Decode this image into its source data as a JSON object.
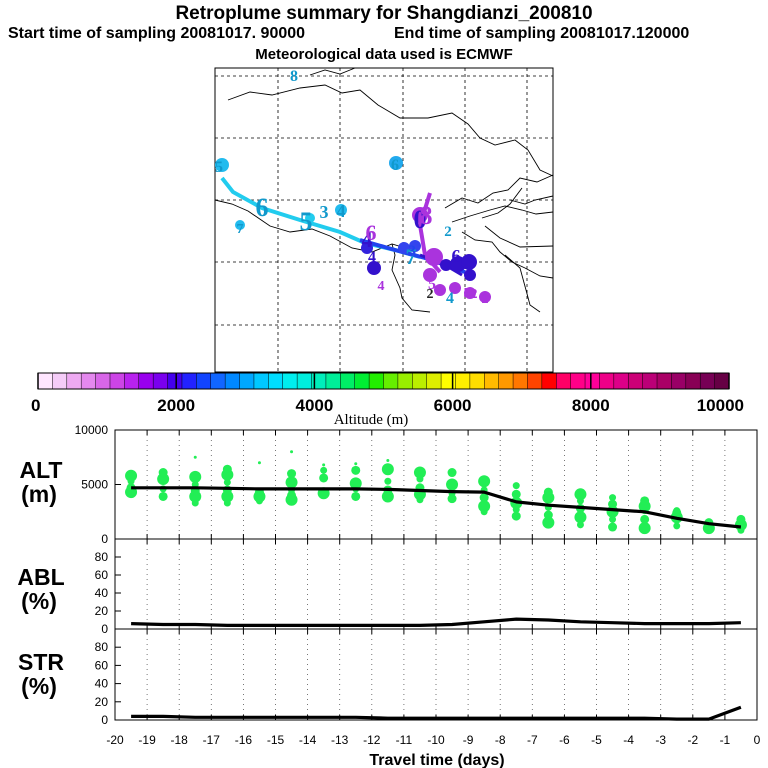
{
  "header": {
    "title": "Retroplume summary for Shangdianzi_200810",
    "start": "Start time of sampling 20081017. 90000",
    "end": "End time of sampling 20081017.120000",
    "met": "Meteorological data used is ECMWF"
  },
  "colorbar": {
    "label": "Altitude (m)",
    "tick_labels": [
      "0",
      "2000",
      "4000",
      "6000",
      "8000",
      "10000"
    ],
    "colors": [
      "#ffe6ff",
      "#f5ccf8",
      "#eeaaf2",
      "#e488ee",
      "#d866e8",
      "#cc44e6",
      "#b822ee",
      "#9900ee",
      "#7a00ee",
      "#4400ee",
      "#2222ff",
      "#1144ff",
      "#1166ff",
      "#0088ff",
      "#00a8ff",
      "#00c8ff",
      "#00ddff",
      "#00eeee",
      "#00eedd",
      "#00eebb",
      "#00ee99",
      "#00ee66",
      "#00ee33",
      "#22ee00",
      "#66ee00",
      "#99ee00",
      "#bbee00",
      "#ddee00",
      "#ffff00",
      "#ffee00",
      "#ffdd00",
      "#ffbb00",
      "#ff9900",
      "#ff7700",
      "#ff4400",
      "#ff0000",
      "#ff0066",
      "#ff0088",
      "#ff0099",
      "#ee0088",
      "#dd0088",
      "#cc0077",
      "#bb0077",
      "#aa0066",
      "#990066",
      "#880055",
      "#770055",
      "#660044"
    ]
  },
  "map": {
    "colors": {
      "line1": "#22ccee",
      "line2": "#2244ee",
      "line3": "#aa33dd",
      "line4": "#3311cc"
    },
    "labels": [
      {
        "text": "0",
        "color": "#3311cc"
      },
      {
        "text": "2",
        "color": "#1199cc"
      },
      {
        "text": "2",
        "color": "#222222"
      },
      {
        "text": "3",
        "color": "#1199cc"
      },
      {
        "text": "4",
        "color": "#1199cc"
      },
      {
        "text": "4",
        "color": "#3311cc"
      },
      {
        "text": "4",
        "color": "#3311cc"
      },
      {
        "text": "4",
        "color": "#aa33dd"
      },
      {
        "text": "4",
        "color": "#1199cc"
      },
      {
        "text": "5",
        "color": "#1199cc"
      },
      {
        "text": "5",
        "color": "#1199cc"
      },
      {
        "text": "5",
        "color": "#aa33dd"
      },
      {
        "text": "5",
        "color": "#aa33dd"
      },
      {
        "text": "6",
        "color": "#1199cc"
      },
      {
        "text": "6",
        "color": "#1199cc"
      },
      {
        "text": "6",
        "color": "#3311cc"
      },
      {
        "text": "6",
        "color": "#aa33dd"
      },
      {
        "text": "7",
        "color": "#1199cc"
      },
      {
        "text": "7",
        "color": "#1199cc"
      },
      {
        "text": "8",
        "color": "#1199cc"
      },
      {
        "text": "8",
        "color": "#aa33dd"
      },
      {
        "text": "2",
        "color": "#aa33dd"
      },
      {
        "text": "2",
        "color": "#aa33dd"
      },
      {
        "text": "3",
        "color": "#2244ee"
      }
    ]
  },
  "chart_data": [
    {
      "type": "line",
      "panel": "ALT",
      "ylabel": "ALT\n(m)",
      "ylabel_lines": [
        "ALT",
        "(m)"
      ],
      "xlim": [
        -20,
        0
      ],
      "ylim": [
        0,
        10000
      ],
      "yticks": [
        "10000",
        "5000",
        "0"
      ],
      "series": [
        {
          "name": "mean altitude",
          "x": [
            -19.5,
            -18.5,
            -17.5,
            -16.5,
            -15.5,
            -14.5,
            -13.5,
            -12.5,
            -11.5,
            -10.5,
            -9.5,
            -8.5,
            -7.5,
            -6.5,
            -5.5,
            -4.5,
            -3.5,
            -2.5,
            -1.5,
            -0.5
          ],
          "y": [
            4700,
            4700,
            4700,
            4650,
            4600,
            4600,
            4600,
            4600,
            4550,
            4450,
            4350,
            4300,
            3400,
            3100,
            2900,
            2700,
            2500,
            1900,
            1400,
            1100
          ]
        }
      ],
      "scatter_color": "#22ee55",
      "scatter": [
        [
          -19.5,
          4300
        ],
        [
          -19.5,
          4700
        ],
        [
          -19.5,
          5300
        ],
        [
          -19.5,
          5800
        ],
        [
          -18.5,
          3900
        ],
        [
          -18.5,
          4600
        ],
        [
          -18.5,
          5500
        ],
        [
          -18.5,
          6100
        ],
        [
          -17.5,
          3300
        ],
        [
          -17.5,
          3900
        ],
        [
          -17.5,
          4400
        ],
        [
          -17.5,
          5000
        ],
        [
          -17.5,
          5700
        ],
        [
          -17.5,
          7500
        ],
        [
          -16.5,
          3300
        ],
        [
          -16.5,
          3900
        ],
        [
          -16.5,
          4500
        ],
        [
          -16.5,
          5200
        ],
        [
          -16.5,
          5900
        ],
        [
          -16.5,
          6400
        ],
        [
          -15.5,
          3500
        ],
        [
          -15.5,
          3900
        ],
        [
          -15.5,
          4300
        ],
        [
          -15.5,
          7000
        ],
        [
          -14.5,
          3600
        ],
        [
          -14.5,
          4000
        ],
        [
          -14.5,
          4500
        ],
        [
          -14.5,
          5200
        ],
        [
          -14.5,
          6000
        ],
        [
          -14.5,
          8000
        ],
        [
          -13.5,
          4200
        ],
        [
          -13.5,
          5600
        ],
        [
          -13.5,
          6300
        ],
        [
          -13.5,
          6800
        ],
        [
          -12.5,
          3900
        ],
        [
          -12.5,
          4600
        ],
        [
          -12.5,
          5100
        ],
        [
          -12.5,
          6300
        ],
        [
          -12.5,
          6900
        ],
        [
          -11.5,
          3900
        ],
        [
          -11.5,
          4500
        ],
        [
          -11.5,
          5300
        ],
        [
          -11.5,
          6400
        ],
        [
          -11.5,
          7200
        ],
        [
          -10.5,
          3600
        ],
        [
          -10.5,
          4100
        ],
        [
          -10.5,
          4700
        ],
        [
          -10.5,
          5500
        ],
        [
          -10.5,
          6100
        ],
        [
          -9.5,
          3700
        ],
        [
          -9.5,
          4200
        ],
        [
          -9.5,
          5000
        ],
        [
          -9.5,
          6100
        ],
        [
          -8.5,
          2500
        ],
        [
          -8.5,
          3000
        ],
        [
          -8.5,
          3800
        ],
        [
          -8.5,
          4500
        ],
        [
          -8.5,
          5300
        ],
        [
          -7.5,
          2100
        ],
        [
          -7.5,
          2700
        ],
        [
          -7.5,
          3300
        ],
        [
          -7.5,
          4100
        ],
        [
          -7.5,
          4900
        ],
        [
          -6.5,
          1500
        ],
        [
          -6.5,
          2200
        ],
        [
          -6.5,
          2900
        ],
        [
          -6.5,
          3800
        ],
        [
          -6.5,
          4300
        ],
        [
          -5.5,
          1300
        ],
        [
          -5.5,
          2000
        ],
        [
          -5.5,
          2800
        ],
        [
          -5.5,
          3500
        ],
        [
          -5.5,
          4100
        ],
        [
          -4.5,
          1100
        ],
        [
          -4.5,
          1800
        ],
        [
          -4.5,
          2500
        ],
        [
          -4.5,
          3200
        ],
        [
          -4.5,
          3800
        ],
        [
          -3.5,
          1000
        ],
        [
          -3.5,
          1800
        ],
        [
          -3.5,
          2600
        ],
        [
          -3.5,
          3000
        ],
        [
          -3.5,
          3500
        ],
        [
          -2.5,
          1200
        ],
        [
          -2.5,
          2000
        ],
        [
          -2.5,
          2400
        ],
        [
          -2.5,
          2600
        ],
        [
          -1.5,
          1000
        ],
        [
          -1.5,
          1500
        ],
        [
          -0.5,
          800
        ],
        [
          -0.5,
          1300
        ],
        [
          -0.5,
          1800
        ]
      ]
    },
    {
      "type": "line",
      "panel": "ABL",
      "ylabel": "ABL\n(%)",
      "ylabel_lines": [
        "ABL",
        "(%)"
      ],
      "xlim": [
        -20,
        0
      ],
      "ylim": [
        0,
        100
      ],
      "yticks": [
        "80",
        "60",
        "40",
        "20",
        "0"
      ],
      "series": [
        {
          "name": "ABL fraction",
          "x": [
            -19.5,
            -18.5,
            -17.5,
            -16.5,
            -15.5,
            -14.5,
            -13.5,
            -12.5,
            -11.5,
            -10.5,
            -9.5,
            -8.5,
            -7.5,
            -6.5,
            -5.5,
            -4.5,
            -3.5,
            -2.5,
            -1.5,
            -0.5
          ],
          "y": [
            6,
            5,
            5,
            4,
            4,
            4,
            4,
            4,
            4,
            4,
            5,
            8,
            11,
            10,
            8,
            7,
            6,
            6,
            6,
            7
          ]
        }
      ]
    },
    {
      "type": "line",
      "panel": "STR",
      "ylabel": "STR\n(%)",
      "ylabel_lines": [
        "STR",
        "(%)"
      ],
      "xlim": [
        -20,
        0
      ],
      "ylim": [
        0,
        100
      ],
      "yticks": [
        "80",
        "60",
        "40",
        "20",
        "0"
      ],
      "xlabel": "Travel time (days)",
      "xticks": [
        "-20",
        "-19",
        "-18",
        "-17",
        "-16",
        "-15",
        "-14",
        "-13",
        "-12",
        "-11",
        "-10",
        "-9",
        "-8",
        "-7",
        "-6",
        "-5",
        "-4",
        "-3",
        "-2",
        "-1",
        "0"
      ],
      "series": [
        {
          "name": "stratospheric fraction",
          "x": [
            -19.5,
            -18.5,
            -17.5,
            -16.5,
            -15.5,
            -14.5,
            -13.5,
            -12.5,
            -11.5,
            -10.5,
            -9.5,
            -8.5,
            -7.5,
            -6.5,
            -5.5,
            -4.5,
            -3.5,
            -2.5,
            -1.5,
            -0.5
          ],
          "y": [
            4,
            4,
            3,
            3,
            3,
            3,
            3,
            3,
            2,
            2,
            2,
            2,
            2,
            2,
            2,
            2,
            2,
            1,
            1,
            14
          ]
        }
      ]
    }
  ]
}
